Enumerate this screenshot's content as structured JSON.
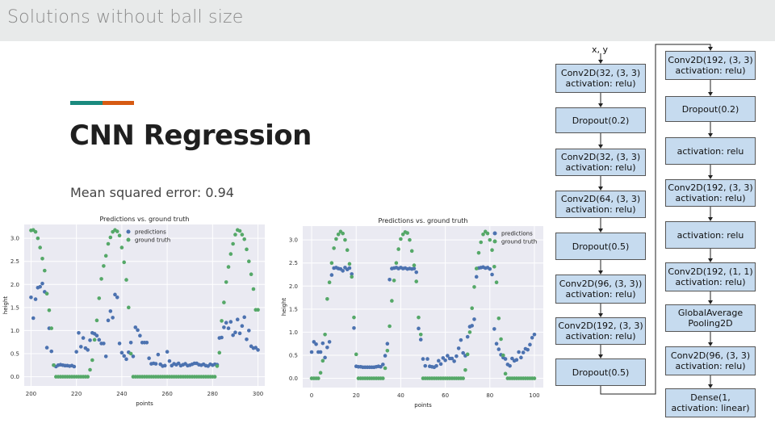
{
  "header": {
    "title": "Solutions without ball size"
  },
  "slide": {
    "title": "CNN Regression",
    "subtitle": "Mean squared error: 0.94",
    "accent_colors": [
      "#1a8a7e",
      "#d65a12"
    ]
  },
  "colors": {
    "predictions": "#4c72b0",
    "ground_truth": "#55a868",
    "plot_bg": "#eaeaf2"
  },
  "chart_data": [
    {
      "type": "scatter",
      "title": "Predictions vs. ground truth",
      "xlabel": "points",
      "ylabel": "height",
      "xlim": [
        197,
        303
      ],
      "ylim": [
        -0.2,
        3.3
      ],
      "xticks": [
        "200",
        "220",
        "240",
        "260",
        "280",
        "300"
      ],
      "yticks": [
        "0.0",
        "0.5",
        "1.0",
        "1.5",
        "2.0",
        "2.5",
        "3.0"
      ],
      "grid": true,
      "legend": "top-center",
      "series": [
        {
          "name": "predictions",
          "x": [
            200,
            201,
            202,
            203,
            204,
            205,
            206,
            207,
            208,
            209,
            210,
            211,
            212,
            213,
            214,
            215,
            216,
            217,
            218,
            219,
            220,
            221,
            222,
            223,
            224,
            225,
            226,
            227,
            228,
            229,
            230,
            231,
            232,
            233,
            234,
            235,
            236,
            237,
            238,
            239,
            240,
            241,
            242,
            243,
            244,
            245,
            246,
            247,
            248,
            249,
            250,
            251,
            252,
            253,
            254,
            255,
            256,
            257,
            258,
            259,
            260,
            261,
            262,
            263,
            264,
            265,
            266,
            267,
            268,
            269,
            270,
            271,
            272,
            273,
            274,
            275,
            276,
            277,
            278,
            279,
            280,
            281,
            282,
            283,
            284,
            285,
            286,
            287,
            288,
            289,
            290,
            291,
            292,
            293,
            294,
            295,
            296,
            297,
            298,
            299,
            300
          ],
          "y": [
            1.72,
            1.27,
            1.68,
            1.93,
            1.95,
            2.02,
            1.84,
            0.63,
            1.05,
            0.55,
            0.25,
            0.22,
            0.25,
            0.26,
            0.25,
            0.24,
            0.24,
            0.23,
            0.24,
            0.22,
            0.54,
            0.95,
            0.65,
            0.84,
            0.62,
            0.58,
            0.79,
            0.95,
            0.93,
            0.89,
            0.8,
            0.72,
            0.72,
            0.44,
            1.22,
            1.42,
            1.28,
            1.78,
            1.72,
            0.72,
            0.52,
            0.45,
            0.38,
            0.53,
            0.74,
            0.44,
            1.07,
            1.01,
            0.89,
            0.74,
            0.74,
            0.74,
            0.4,
            0.28,
            0.29,
            0.28,
            0.48,
            0.27,
            0.23,
            0.24,
            0.54,
            0.34,
            0.24,
            0.28,
            0.26,
            0.29,
            0.24,
            0.26,
            0.28,
            0.24,
            0.25,
            0.27,
            0.29,
            0.29,
            0.26,
            0.25,
            0.27,
            0.24,
            0.23,
            0.27,
            0.25,
            0.27,
            0.26,
            0.84,
            0.85,
            1.07,
            1.17,
            1.05,
            1.19,
            0.9,
            0.96,
            1.24,
            0.94,
            1.1,
            1.29,
            0.81,
            1.0,
            0.66,
            0.62,
            0.63,
            0.58
          ]
        },
        {
          "name": "ground truth",
          "x": [
            200,
            201,
            202,
            203,
            204,
            205,
            206,
            207,
            208,
            209,
            210,
            211,
            212,
            213,
            214,
            215,
            216,
            217,
            218,
            219,
            220,
            221,
            222,
            223,
            224,
            225,
            226,
            227,
            228,
            229,
            230,
            231,
            232,
            233,
            234,
            235,
            236,
            237,
            238,
            239,
            240,
            241,
            242,
            243,
            244,
            245,
            246,
            247,
            248,
            249,
            250,
            251,
            252,
            253,
            254,
            255,
            256,
            257,
            258,
            259,
            260,
            261,
            262,
            263,
            264,
            265,
            266,
            267,
            268,
            269,
            270,
            271,
            272,
            273,
            274,
            275,
            276,
            277,
            278,
            279,
            280,
            281,
            282,
            283,
            284,
            285,
            286,
            287,
            288,
            289,
            290,
            291,
            292,
            293,
            294,
            295,
            296,
            297,
            298,
            299,
            300
          ],
          "y": [
            3.17,
            3.18,
            3.14,
            3.0,
            2.8,
            2.56,
            2.3,
            1.8,
            1.44,
            1.05,
            0.25,
            0.0,
            0.0,
            0.0,
            0.0,
            0.0,
            0.0,
            0.0,
            0.0,
            0.0,
            0.0,
            0.0,
            0.0,
            0.0,
            0.0,
            0.0,
            0.15,
            0.36,
            0.8,
            1.22,
            1.7,
            2.12,
            2.4,
            2.62,
            2.88,
            3.02,
            3.14,
            3.18,
            3.15,
            3.06,
            2.8,
            2.48,
            2.1,
            1.5,
            0.5,
            0.0,
            0.0,
            0.0,
            0.0,
            0.0,
            0.0,
            0.0,
            0.0,
            0.0,
            0.0,
            0.0,
            0.0,
            0.0,
            0.0,
            0.0,
            0.0,
            0.0,
            0.0,
            0.0,
            0.0,
            0.0,
            0.0,
            0.0,
            0.0,
            0.0,
            0.0,
            0.0,
            0.0,
            0.0,
            0.0,
            0.0,
            0.0,
            0.0,
            0.0,
            0.0,
            0.0,
            0.0,
            0.23,
            0.52,
            1.21,
            1.61,
            2.05,
            2.38,
            2.66,
            2.88,
            3.08,
            3.18,
            3.16,
            3.08,
            2.98,
            2.76,
            2.5,
            2.22,
            1.9,
            1.45,
            1.45
          ]
        }
      ]
    },
    {
      "type": "scatter",
      "title": "Predictions vs. ground truth",
      "xlabel": "points",
      "ylabel": "height",
      "xlim": [
        -4,
        104
      ],
      "ylim": [
        -0.2,
        3.3
      ],
      "xticks": [
        "0",
        "20",
        "40",
        "60",
        "80",
        "100"
      ],
      "yticks": [
        "0.0",
        "0.5",
        "1.0",
        "1.5",
        "2.0",
        "2.5",
        "3.0"
      ],
      "grid": true,
      "legend": "top-right",
      "series": [
        {
          "name": "predictions",
          "x": [
            0,
            1,
            2,
            3,
            4,
            5,
            6,
            7,
            8,
            9,
            10,
            11,
            12,
            13,
            14,
            15,
            16,
            17,
            18,
            19,
            20,
            21,
            22,
            23,
            24,
            25,
            26,
            27,
            28,
            29,
            30,
            31,
            32,
            33,
            34,
            35,
            36,
            37,
            38,
            39,
            40,
            41,
            42,
            43,
            44,
            45,
            46,
            47,
            48,
            49,
            50,
            51,
            52,
            53,
            54,
            55,
            56,
            57,
            58,
            59,
            60,
            61,
            62,
            63,
            64,
            65,
            66,
            67,
            68,
            69,
            70,
            71,
            72,
            73,
            74,
            75,
            76,
            77,
            78,
            79,
            80,
            81,
            82,
            83,
            84,
            85,
            86,
            87,
            88,
            89,
            90,
            91,
            92,
            93,
            94,
            95,
            96,
            97,
            98,
            99,
            100
          ],
          "y": [
            0.57,
            0.79,
            0.74,
            0.57,
            0.57,
            0.76,
            0.45,
            0.67,
            0.79,
            2.24,
            2.39,
            2.4,
            2.38,
            2.37,
            2.33,
            2.4,
            2.36,
            2.39,
            2.26,
            1.09,
            0.26,
            0.25,
            0.25,
            0.24,
            0.24,
            0.24,
            0.24,
            0.24,
            0.24,
            0.25,
            0.26,
            0.25,
            0.3,
            0.49,
            0.75,
            2.14,
            2.38,
            2.39,
            2.4,
            2.38,
            2.4,
            2.38,
            2.39,
            2.37,
            2.38,
            2.37,
            2.38,
            2.3,
            1.08,
            0.84,
            0.42,
            0.27,
            0.42,
            0.26,
            0.25,
            0.24,
            0.27,
            0.38,
            0.31,
            0.44,
            0.39,
            0.49,
            0.43,
            0.43,
            0.37,
            0.48,
            0.65,
            0.83,
            0.55,
            0.49,
            0.9,
            1.12,
            1.14,
            1.28,
            2.2,
            2.39,
            2.4,
            2.41,
            2.39,
            2.4,
            2.37,
            2.25,
            1.07,
            0.75,
            0.63,
            0.51,
            0.45,
            0.42,
            0.3,
            0.27,
            0.43,
            0.38,
            0.4,
            0.57,
            0.45,
            0.56,
            0.64,
            0.62,
            0.73,
            0.88,
            0.95
          ]
        },
        {
          "name": "ground truth",
          "x": [
            0,
            1,
            2,
            3,
            4,
            5,
            6,
            7,
            8,
            9,
            10,
            11,
            12,
            13,
            14,
            15,
            16,
            17,
            18,
            19,
            20,
            21,
            22,
            23,
            24,
            25,
            26,
            27,
            28,
            29,
            30,
            31,
            32,
            33,
            34,
            35,
            36,
            37,
            38,
            39,
            40,
            41,
            42,
            43,
            44,
            45,
            46,
            47,
            48,
            49,
            50,
            51,
            52,
            53,
            54,
            55,
            56,
            57,
            58,
            59,
            60,
            61,
            62,
            63,
            64,
            65,
            66,
            67,
            68,
            69,
            70,
            71,
            72,
            73,
            74,
            75,
            76,
            77,
            78,
            79,
            80,
            81,
            82,
            83,
            84,
            85,
            86,
            87,
            88,
            89,
            90,
            91,
            92,
            93,
            94,
            95,
            96,
            97,
            98,
            99,
            100
          ],
          "y": [
            0.0,
            0.0,
            0.0,
            0.0,
            0.12,
            0.38,
            0.95,
            1.72,
            2.08,
            2.5,
            2.82,
            3.02,
            3.12,
            3.18,
            3.14,
            3.0,
            2.78,
            2.48,
            2.2,
            1.32,
            0.52,
            0.0,
            0.0,
            0.0,
            0.0,
            0.0,
            0.0,
            0.0,
            0.0,
            0.0,
            0.0,
            0.0,
            0.0,
            0.22,
            0.6,
            1.13,
            1.68,
            2.12,
            2.5,
            2.8,
            3.02,
            3.12,
            3.17,
            3.15,
            3.0,
            2.76,
            2.45,
            2.1,
            1.32,
            0.95,
            0.0,
            0.0,
            0.0,
            0.0,
            0.0,
            0.0,
            0.0,
            0.0,
            0.0,
            0.0,
            0.0,
            0.0,
            0.0,
            0.0,
            0.0,
            0.0,
            0.0,
            0.0,
            0.0,
            0.18,
            0.52,
            1.0,
            1.52,
            1.98,
            2.38,
            2.72,
            2.95,
            3.12,
            3.18,
            3.14,
            3.0,
            2.78,
            2.42,
            2.08,
            1.3,
            0.85,
            0.5,
            0.1,
            0.0,
            0.0,
            0.0,
            0.0,
            0.0,
            0.0,
            0.0,
            0.0,
            0.0,
            0.0,
            0.0,
            0.0,
            0.0
          ]
        }
      ]
    }
  ],
  "diagram": {
    "input_label": "x, y",
    "left_column": [
      "Conv2D(32, (3, 3)\nactivation: relu)",
      "Dropout(0.2)",
      "Conv2D(32, (3, 3)\nactivation: relu)",
      "Conv2D(64, (3, 3)\nactivation: relu)",
      "Dropout(0.5)",
      "Conv2D(96, (3, 3))\nactivation: relu)",
      "Conv2D(192, (3, 3)\nactivation: relu)",
      "Dropout(0.5)"
    ],
    "right_column": [
      "Conv2D(192, (3, 3)\nactivation: relu)",
      "Dropout(0.2)",
      "activation: relu",
      "Conv2D(192, (3, 3)\nactivation: relu)",
      "activation: relu",
      "Conv2D(192, (1, 1)\nactivation: relu)",
      "GlobalAverage\nPooling2D",
      "Conv2D(96, (3, 3)\nactivation: relu)",
      "Dense(1,\nactivation: linear)"
    ]
  }
}
